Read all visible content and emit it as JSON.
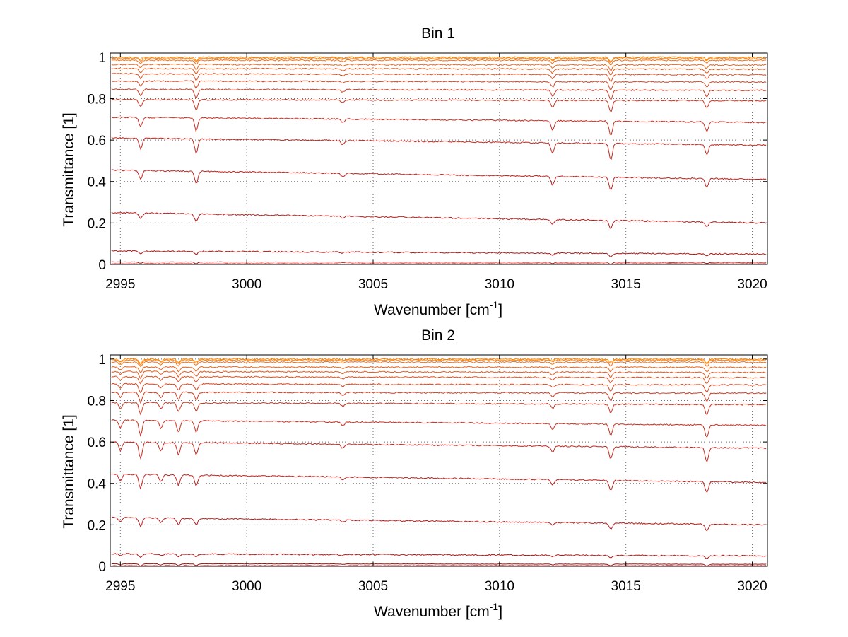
{
  "chart_data": [
    {
      "type": "line",
      "title": "Bin 1",
      "xlabel": "Wavenumber [cm",
      "xlabel_sup": "-1",
      "xlabel_end": "]",
      "ylabel": "Transmittance [1]",
      "xlim": [
        2994.6,
        3020.6
      ],
      "ylim": [
        0,
        1.02
      ],
      "xticks": [
        2995,
        3000,
        3005,
        3010,
        3015,
        3020
      ],
      "xtick_labels": [
        "2995",
        "3000",
        "3005",
        "3010",
        "3015",
        "3020"
      ],
      "yticks": [
        0,
        0.2,
        0.4,
        0.6,
        0.8,
        1
      ],
      "ytick_labels": [
        "0",
        "0.2",
        "0.4",
        "0.6",
        "0.8",
        "1"
      ],
      "grid": true,
      "absorption_lines": [
        {
          "x": 2995.8,
          "strength": 0.05
        },
        {
          "x": 2998.0,
          "strength": 0.07
        },
        {
          "x": 3003.8,
          "strength": 0.02
        },
        {
          "x": 3012.1,
          "strength": 0.05
        },
        {
          "x": 3014.4,
          "strength": 0.08
        },
        {
          "x": 3018.2,
          "strength": 0.05
        }
      ],
      "series": [
        {
          "baseline_start": 1.0,
          "baseline_end": 1.0,
          "color": "#ff8c00"
        },
        {
          "baseline_start": 0.995,
          "baseline_end": 0.995,
          "color": "#ff7f0e"
        },
        {
          "baseline_start": 0.985,
          "baseline_end": 0.985,
          "color": "#f47216"
        },
        {
          "baseline_start": 0.965,
          "baseline_end": 0.962,
          "color": "#ec651b"
        },
        {
          "baseline_start": 0.945,
          "baseline_end": 0.942,
          "color": "#e45a1e"
        },
        {
          "baseline_start": 0.92,
          "baseline_end": 0.915,
          "color": "#dd5020"
        },
        {
          "baseline_start": 0.885,
          "baseline_end": 0.88,
          "color": "#d64622"
        },
        {
          "baseline_start": 0.845,
          "baseline_end": 0.84,
          "color": "#d03d22"
        },
        {
          "baseline_start": 0.795,
          "baseline_end": 0.79,
          "color": "#cc3522"
        },
        {
          "baseline_start": 0.71,
          "baseline_end": 0.685,
          "color": "#c92e22"
        },
        {
          "baseline_start": 0.61,
          "baseline_end": 0.575,
          "color": "#c52820"
        },
        {
          "baseline_start": 0.455,
          "baseline_end": 0.41,
          "color": "#c1221f"
        },
        {
          "baseline_start": 0.25,
          "baseline_end": 0.2,
          "color": "#ba1c1c"
        },
        {
          "baseline_start": 0.065,
          "baseline_end": 0.05,
          "color": "#b01717"
        },
        {
          "baseline_start": 0.012,
          "baseline_end": 0.01,
          "color": "#a01212"
        },
        {
          "baseline_start": 0.003,
          "baseline_end": 0.003,
          "color": "#8e0b0b"
        }
      ]
    },
    {
      "type": "line",
      "title": "Bin 2",
      "xlabel": "Wavenumber [cm",
      "xlabel_sup": "-1",
      "xlabel_end": "]",
      "ylabel": "Transmittance [1]",
      "xlim": [
        2994.6,
        3020.6
      ],
      "ylim": [
        0,
        1.02
      ],
      "xticks": [
        2995,
        3000,
        3005,
        3010,
        3015,
        3020
      ],
      "xtick_labels": [
        "2995",
        "3000",
        "3005",
        "3010",
        "3015",
        "3020"
      ],
      "yticks": [
        0,
        0.2,
        0.4,
        0.6,
        0.8,
        1
      ],
      "ytick_labels": [
        "0",
        "0.2",
        "0.4",
        "0.6",
        "0.8",
        "1"
      ],
      "grid": true,
      "absorption_lines": [
        {
          "x": 2995.0,
          "strength": 0.04
        },
        {
          "x": 2995.8,
          "strength": 0.08
        },
        {
          "x": 2996.6,
          "strength": 0.04
        },
        {
          "x": 2997.3,
          "strength": 0.06
        },
        {
          "x": 2998.0,
          "strength": 0.06
        },
        {
          "x": 3003.8,
          "strength": 0.02
        },
        {
          "x": 3012.1,
          "strength": 0.03
        },
        {
          "x": 3014.4,
          "strength": 0.06
        },
        {
          "x": 3018.2,
          "strength": 0.07
        }
      ],
      "series": [
        {
          "baseline_start": 1.0,
          "baseline_end": 1.0,
          "color": "#ff8c00"
        },
        {
          "baseline_start": 0.995,
          "baseline_end": 0.995,
          "color": "#ff7f0e"
        },
        {
          "baseline_start": 0.985,
          "baseline_end": 0.985,
          "color": "#f47216"
        },
        {
          "baseline_start": 0.962,
          "baseline_end": 0.96,
          "color": "#ec651b"
        },
        {
          "baseline_start": 0.94,
          "baseline_end": 0.935,
          "color": "#e45a1e"
        },
        {
          "baseline_start": 0.915,
          "baseline_end": 0.91,
          "color": "#dd5020"
        },
        {
          "baseline_start": 0.88,
          "baseline_end": 0.875,
          "color": "#d64622"
        },
        {
          "baseline_start": 0.84,
          "baseline_end": 0.835,
          "color": "#d03d22"
        },
        {
          "baseline_start": 0.79,
          "baseline_end": 0.78,
          "color": "#cc3522"
        },
        {
          "baseline_start": 0.705,
          "baseline_end": 0.68,
          "color": "#c92e22"
        },
        {
          "baseline_start": 0.6,
          "baseline_end": 0.57,
          "color": "#c52820"
        },
        {
          "baseline_start": 0.445,
          "baseline_end": 0.405,
          "color": "#c1221f"
        },
        {
          "baseline_start": 0.235,
          "baseline_end": 0.2,
          "color": "#ba1c1c"
        },
        {
          "baseline_start": 0.06,
          "baseline_end": 0.05,
          "color": "#b01717"
        },
        {
          "baseline_start": 0.012,
          "baseline_end": 0.01,
          "color": "#a01212"
        },
        {
          "baseline_start": 0.003,
          "baseline_end": 0.003,
          "color": "#8e0b0b"
        }
      ]
    }
  ]
}
